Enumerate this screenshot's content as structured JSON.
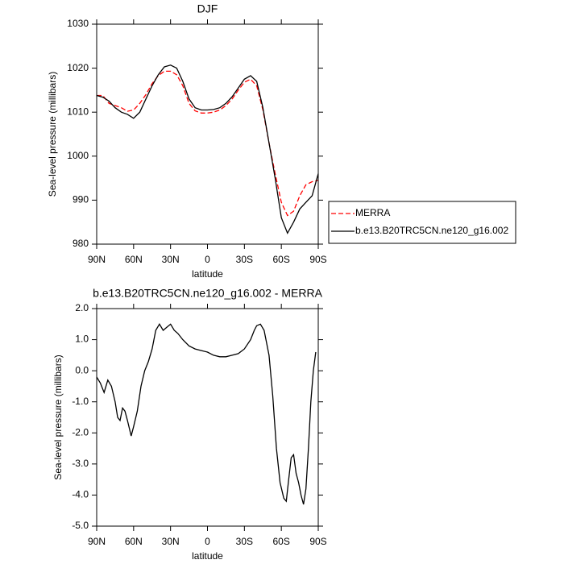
{
  "chart_data": [
    {
      "type": "line",
      "title": "DJF",
      "xlabel": "latitude",
      "ylabel": "Sea-level pressure (millibars)",
      "x": [
        90,
        85,
        80,
        75,
        70,
        65,
        60,
        55,
        50,
        45,
        40,
        35,
        30,
        25,
        20,
        15,
        10,
        5,
        0,
        -5,
        -10,
        -15,
        -20,
        -25,
        -30,
        -35,
        -40,
        -45,
        -50,
        -55,
        -60,
        -65,
        -70,
        -75,
        -80,
        -85,
        -90
      ],
      "series": [
        {
          "name": "MERRA",
          "color": "#ff0000",
          "style": "dashed",
          "values": [
            1013.8,
            1013.8,
            1012,
            1011.5,
            1011,
            1010.2,
            1010.5,
            1012,
            1014,
            1016.5,
            1018.3,
            1019.3,
            1019.3,
            1018.5,
            1016,
            1012,
            1010.3,
            1009.8,
            1009.8,
            1010,
            1010.5,
            1011.5,
            1013,
            1015,
            1016.8,
            1017.5,
            1016,
            1010.5,
            1003,
            996,
            989.5,
            986.5,
            987.5,
            991,
            993.5,
            994.2,
            994.5
          ]
        },
        {
          "name": "b.e13.B20TRC5CN.ne120_g16.002",
          "color": "#000000",
          "style": "solid",
          "values": [
            1013.8,
            1013.4,
            1012.5,
            1011,
            1010,
            1009.5,
            1008.6,
            1010,
            1013,
            1016,
            1018.5,
            1020.3,
            1020.7,
            1020,
            1017,
            1013,
            1011,
            1010.5,
            1010.5,
            1010.6,
            1011,
            1012,
            1013.5,
            1015.5,
            1017.5,
            1018.3,
            1017,
            1011,
            1003,
            995,
            986,
            982.5,
            985,
            988,
            989.5,
            991,
            996
          ]
        }
      ],
      "xlim": [
        90,
        -90
      ],
      "ylim": [
        980,
        1030
      ],
      "xticks": [
        {
          "value": 90,
          "label": "90N"
        },
        {
          "value": 60,
          "label": "60N"
        },
        {
          "value": 30,
          "label": "30N"
        },
        0,
        {
          "value": -30,
          "label": "30S"
        },
        {
          "value": -60,
          "label": "60S"
        },
        {
          "value": -90,
          "label": "90S"
        }
      ],
      "yticks": [
        980,
        990,
        1000,
        1010,
        1020,
        1030
      ],
      "legend": "right"
    },
    {
      "type": "line",
      "title": "b.e13.B20TRC5CN.ne120_g16.002 - MERRA",
      "xlabel": "latitude",
      "ylabel": "Sea-level pressure (millibars)",
      "x": [
        90,
        87,
        84,
        81,
        78,
        75,
        73,
        71,
        69,
        67,
        65,
        62,
        60,
        57,
        54,
        51,
        48,
        45,
        42,
        39,
        36,
        33,
        30,
        27,
        24,
        20,
        15,
        10,
        5,
        0,
        -5,
        -10,
        -15,
        -20,
        -25,
        -30,
        -35,
        -38,
        -40,
        -43,
        -46,
        -50,
        -53,
        -56,
        -59,
        -62,
        -64,
        -66,
        -68,
        -70,
        -72,
        -74,
        -76,
        -78,
        -80,
        -82,
        -84,
        -86,
        -88
      ],
      "series": [
        {
          "color": "#000000",
          "style": "solid",
          "values": [
            -0.2,
            -0.4,
            -0.7,
            -0.3,
            -0.5,
            -1.0,
            -1.5,
            -1.6,
            -1.2,
            -1.3,
            -1.6,
            -2.1,
            -1.8,
            -1.3,
            -0.5,
            0.0,
            0.3,
            0.7,
            1.3,
            1.5,
            1.3,
            1.4,
            1.5,
            1.3,
            1.2,
            1.0,
            0.8,
            0.7,
            0.65,
            0.6,
            0.5,
            0.45,
            0.45,
            0.5,
            0.55,
            0.7,
            1.0,
            1.3,
            1.45,
            1.5,
            1.3,
            0.5,
            -0.8,
            -2.5,
            -3.6,
            -4.1,
            -4.2,
            -3.5,
            -2.8,
            -2.7,
            -3.3,
            -3.6,
            -4.0,
            -4.3,
            -3.8,
            -2.5,
            -1.0,
            0.0,
            0.6
          ]
        }
      ],
      "xlim": [
        90,
        -90
      ],
      "ylim": [
        -5,
        2
      ],
      "xticks": [
        {
          "value": 90,
          "label": "90N"
        },
        {
          "value": 60,
          "label": "60N"
        },
        {
          "value": 30,
          "label": "30N"
        },
        0,
        {
          "value": -30,
          "label": "30S"
        },
        {
          "value": -60,
          "label": "60S"
        },
        {
          "value": -90,
          "label": "90S"
        }
      ],
      "yticks": [
        {
          "value": -5,
          "label": "-5.0"
        },
        {
          "value": -4,
          "label": "-4.0"
        },
        {
          "value": -3,
          "label": "-3.0"
        },
        {
          "value": -2,
          "label": "-2.0"
        },
        {
          "value": -1,
          "label": "-1.0"
        },
        {
          "value": 0,
          "label": "0.0"
        },
        {
          "value": 1,
          "label": "1.0"
        },
        {
          "value": 2,
          "label": "2.0"
        }
      ]
    }
  ]
}
